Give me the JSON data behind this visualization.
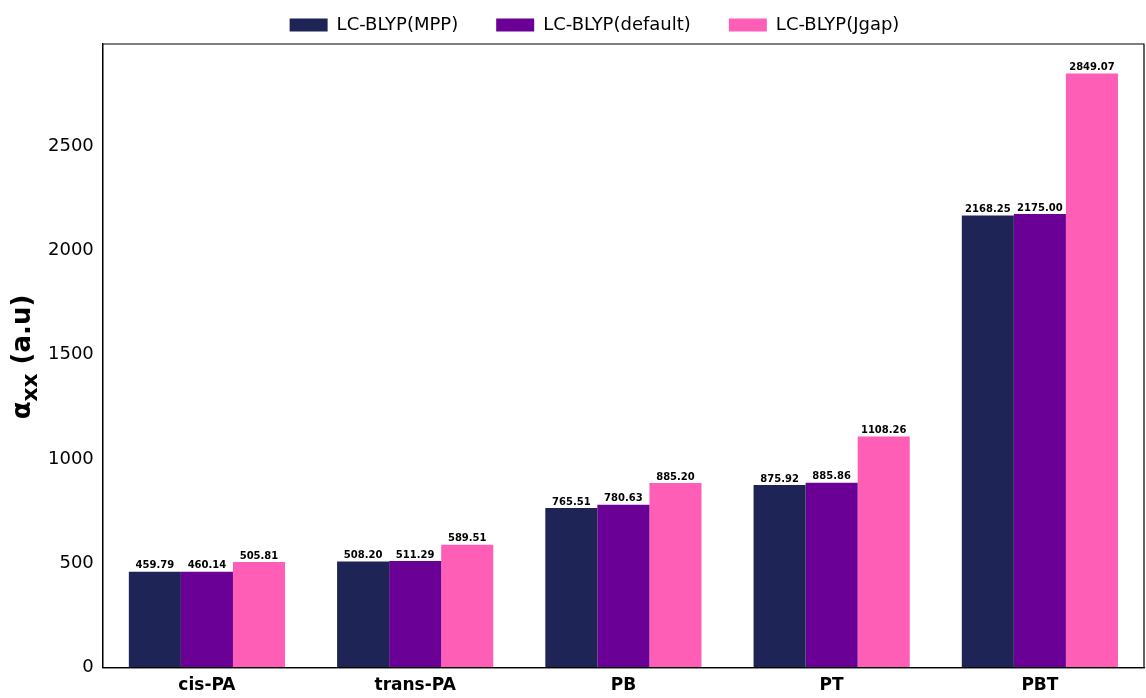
{
  "chart_data": {
    "type": "bar",
    "ylabel": "α$_{xx}$ (a.u)",
    "categories": [
      "cis-PA",
      "trans-PA",
      "PB",
      "PT",
      "PBT"
    ],
    "series": [
      {
        "name": "LC-BLYP(MPP)",
        "color": "#1f2456",
        "values": [
          459.79,
          508.2,
          765.51,
          875.92,
          2168.25
        ],
        "value_labels": [
          "459.79",
          "508.20",
          "765.51",
          "875.92",
          "2168.25"
        ]
      },
      {
        "name": "LC-BLYP(default)",
        "color": "#6a0096",
        "values": [
          460.14,
          511.29,
          780.63,
          885.86,
          2175.0
        ],
        "value_labels": [
          "460.14",
          "511.29",
          "780.63",
          "885.86",
          "2175.00"
        ]
      },
      {
        "name": "LC-BLYP(Jgap)",
        "color": "#ff5eb6",
        "values": [
          505.81,
          589.51,
          885.2,
          1108.26,
          2849.07
        ],
        "value_labels": [
          "505.81",
          "589.51",
          "885.20",
          "1108.26",
          "2849.07"
        ]
      }
    ],
    "ylim": [
      0,
      2990
    ],
    "yticks": [
      0,
      500,
      1000,
      1500,
      2000,
      2500
    ],
    "grid": false,
    "legend": "top"
  }
}
